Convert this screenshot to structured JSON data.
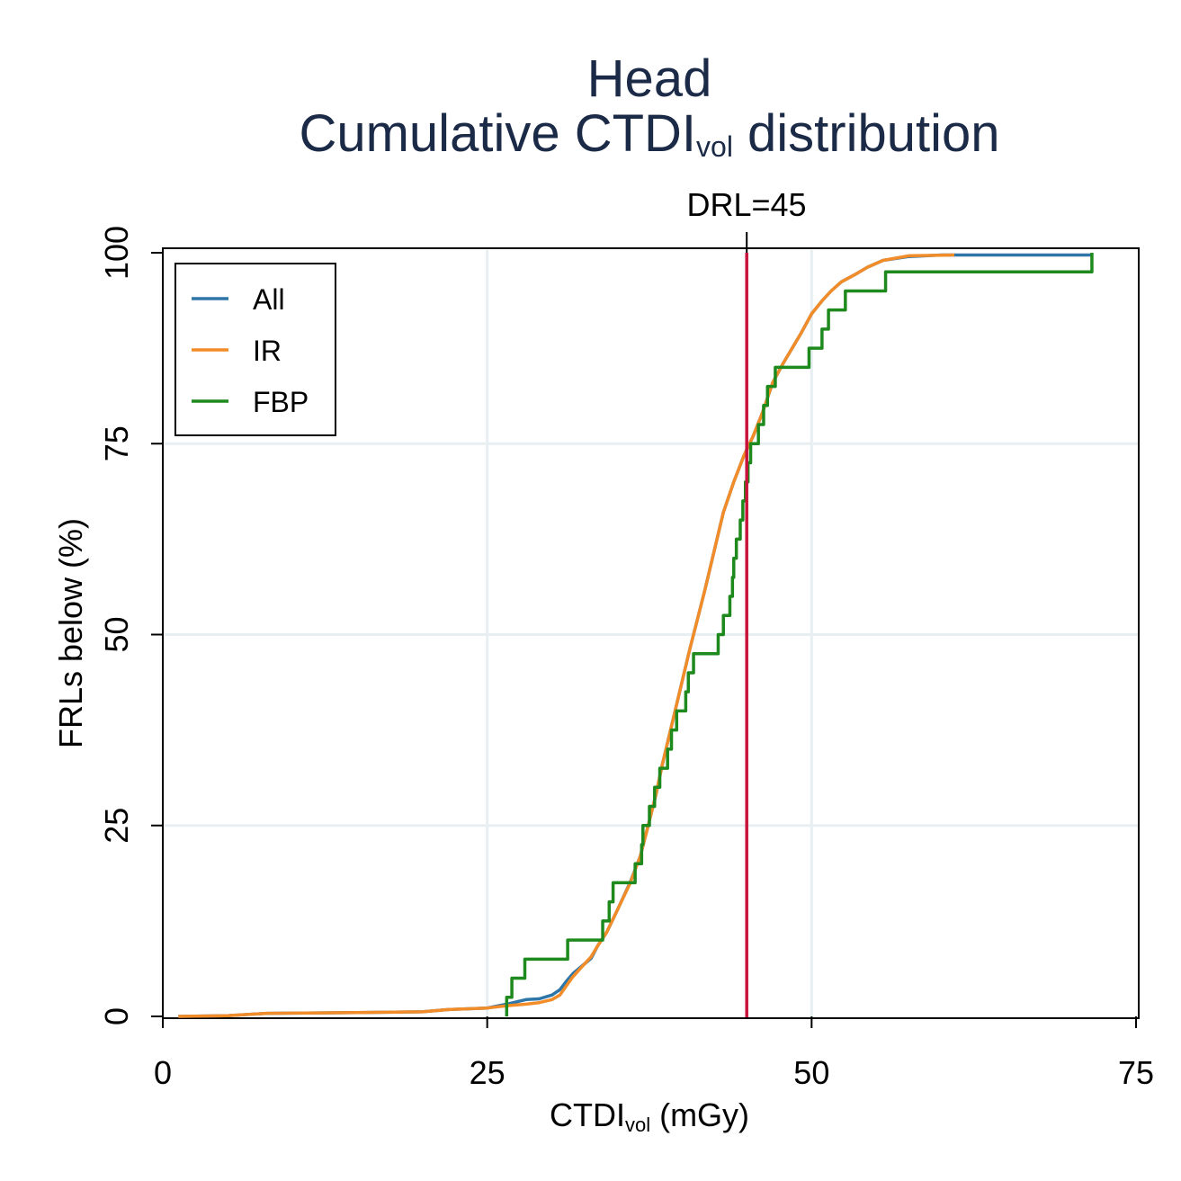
{
  "chart_data": {
    "type": "line",
    "title": {
      "line1": "Head",
      "line2_main": "Cumulative CTDI",
      "line2_sub": "vol",
      "line2_rest": " distribution"
    },
    "xlabel": {
      "main": "CTDI",
      "sub": "vol",
      "rest": " (mGy)"
    },
    "ylabel": "FRLs below (%)",
    "xlim": [
      0,
      75
    ],
    "ylim": [
      0,
      100
    ],
    "x_ticks": [
      "0",
      "25",
      "50",
      "75"
    ],
    "y_ticks": [
      "0",
      "25",
      "50",
      "75",
      "100"
    ],
    "grid": true,
    "legend_position": "top-left",
    "reference_line": {
      "label": "DRL=45",
      "x": 45,
      "color": "#c8143c"
    },
    "series": [
      {
        "name": "All",
        "color": "#2e75a8",
        "points": [
          [
            1.2,
            0
          ],
          [
            5,
            0.1
          ],
          [
            8,
            0.4
          ],
          [
            15,
            0.5
          ],
          [
            20,
            0.6
          ],
          [
            22,
            0.9
          ],
          [
            25,
            1.1
          ],
          [
            26.5,
            1.6
          ],
          [
            28,
            2.2
          ],
          [
            29,
            2.3
          ],
          [
            30,
            2.8
          ],
          [
            30.6,
            3.5
          ],
          [
            31.1,
            4.6
          ],
          [
            31.6,
            5.6
          ],
          [
            32.3,
            6.6
          ],
          [
            33,
            7.6
          ],
          [
            33.5,
            9.2
          ],
          [
            34.2,
            11
          ],
          [
            35,
            13.8
          ],
          [
            36,
            17.5
          ],
          [
            36.8,
            21
          ],
          [
            37.4,
            25
          ],
          [
            38,
            29
          ],
          [
            38.5,
            33
          ],
          [
            39.2,
            38
          ],
          [
            39.9,
            43
          ],
          [
            40.6,
            48
          ],
          [
            41.2,
            52
          ],
          [
            41.8,
            56
          ],
          [
            42.5,
            61
          ],
          [
            43.2,
            66
          ],
          [
            44,
            70
          ],
          [
            44.8,
            73.5
          ],
          [
            45.5,
            76
          ],
          [
            46.2,
            79
          ],
          [
            47,
            83
          ],
          [
            47.8,
            85.5
          ],
          [
            48.5,
            87.5
          ],
          [
            49.2,
            89.5
          ],
          [
            50,
            92
          ],
          [
            50.8,
            93.7
          ],
          [
            51.5,
            95
          ],
          [
            52.3,
            96.2
          ],
          [
            53.3,
            97.1
          ],
          [
            54.3,
            98.1
          ],
          [
            55.5,
            99
          ],
          [
            57.5,
            99.5
          ],
          [
            60,
            99.7
          ],
          [
            71.6,
            99.7
          ]
        ]
      },
      {
        "name": "IR",
        "color": "#f28c28",
        "points": [
          [
            1.2,
            0
          ],
          [
            5,
            0.1
          ],
          [
            8,
            0.4
          ],
          [
            15,
            0.5
          ],
          [
            20,
            0.6
          ],
          [
            22,
            0.9
          ],
          [
            25,
            1.1
          ],
          [
            26.5,
            1.4
          ],
          [
            28,
            1.6
          ],
          [
            29,
            1.8
          ],
          [
            30,
            2.2
          ],
          [
            30.6,
            2.8
          ],
          [
            31.1,
            4
          ],
          [
            31.6,
            5.2
          ],
          [
            32.3,
            6.5
          ],
          [
            33,
            7.8
          ],
          [
            33.5,
            9.2
          ],
          [
            34.2,
            11
          ],
          [
            35,
            13.8
          ],
          [
            36,
            17.4
          ],
          [
            36.8,
            21
          ],
          [
            37.4,
            25
          ],
          [
            38,
            29
          ],
          [
            38.5,
            33
          ],
          [
            39.2,
            38
          ],
          [
            39.9,
            43
          ],
          [
            40.6,
            48
          ],
          [
            41.2,
            52
          ],
          [
            41.8,
            56
          ],
          [
            42.5,
            61
          ],
          [
            43.2,
            66
          ],
          [
            44,
            70
          ],
          [
            44.8,
            73.5
          ],
          [
            45.5,
            76
          ],
          [
            46.2,
            79
          ],
          [
            47,
            83
          ],
          [
            47.8,
            85.5
          ],
          [
            48.5,
            87.5
          ],
          [
            49.2,
            89.5
          ],
          [
            50,
            92
          ],
          [
            50.8,
            93.7
          ],
          [
            51.5,
            95
          ],
          [
            52.3,
            96.2
          ],
          [
            53.3,
            97.1
          ],
          [
            54.3,
            98.1
          ],
          [
            55.5,
            99
          ],
          [
            57.5,
            99.6
          ],
          [
            61,
            99.7
          ]
        ]
      },
      {
        "name": "FBP",
        "color": "#1e8a1e",
        "step": true,
        "points": [
          [
            26.5,
            2.5
          ],
          [
            26.9,
            5
          ],
          [
            27.9,
            7.5
          ],
          [
            31.2,
            10
          ],
          [
            33.9,
            12.5
          ],
          [
            34.4,
            15
          ],
          [
            34.7,
            17.5
          ],
          [
            36.4,
            20
          ],
          [
            36.9,
            22.5
          ],
          [
            37.0,
            25
          ],
          [
            37.5,
            27.5
          ],
          [
            37.9,
            30
          ],
          [
            38.3,
            32.5
          ],
          [
            38.9,
            35
          ],
          [
            39.2,
            37.5
          ],
          [
            39.6,
            40
          ],
          [
            40.3,
            42.5
          ],
          [
            40.5,
            45
          ],
          [
            40.9,
            47.5
          ],
          [
            42.8,
            50
          ],
          [
            43.2,
            52.5
          ],
          [
            43.7,
            55
          ],
          [
            43.9,
            57.5
          ],
          [
            44.0,
            60
          ],
          [
            44.2,
            62.5
          ],
          [
            44.5,
            65
          ],
          [
            44.7,
            67.5
          ],
          [
            44.9,
            70
          ],
          [
            45.1,
            72.5
          ],
          [
            45.3,
            75
          ],
          [
            45.9,
            77.5
          ],
          [
            46.3,
            80
          ],
          [
            46.6,
            82.5
          ],
          [
            47.2,
            85
          ],
          [
            49.8,
            87.5
          ],
          [
            50.8,
            90
          ],
          [
            51.3,
            92.5
          ],
          [
            52.6,
            95
          ],
          [
            55.7,
            97.5
          ],
          [
            71.6,
            100
          ]
        ]
      }
    ]
  }
}
